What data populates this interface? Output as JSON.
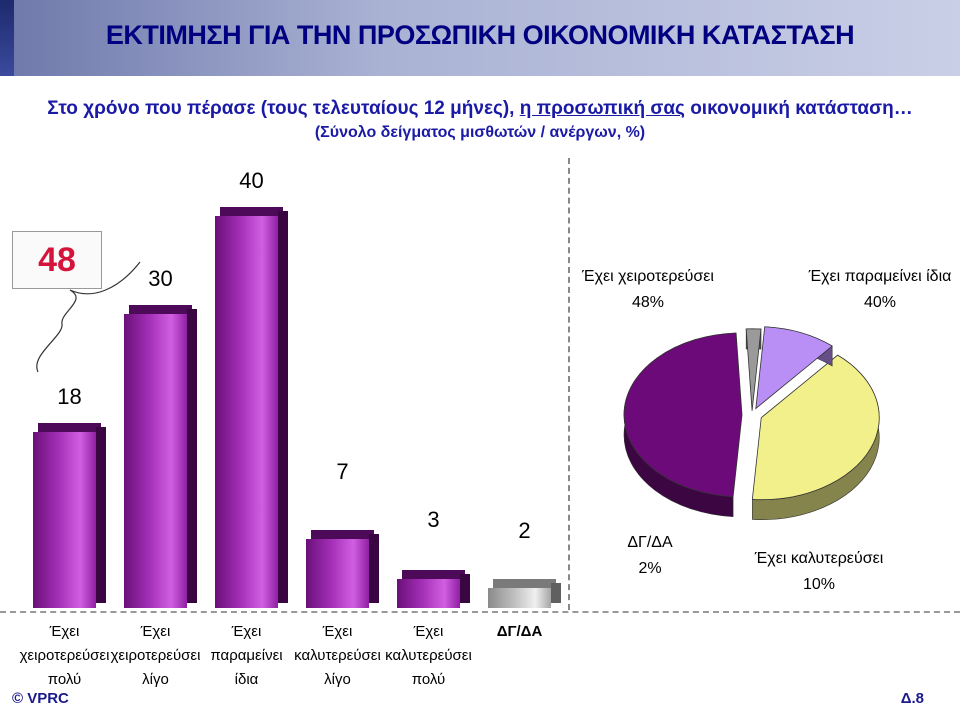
{
  "header": {
    "title": "ΕΚΤΙΜΗΣΗ ΓΙΑ ΤΗΝ ΠΡΟΣΩΠΙΚΗ ΟΙΚΟΝΟΜΙΚΗ ΚΑΤΑΣΤΑΣΗ",
    "question_part1": "Στο χρόνο που πέρασε (τους τελευταίους 12 μήνες), ",
    "question_underlined": "η προσωπική σας",
    "question_part2": " οικονομική κατάσταση…",
    "base_note": "(Σύνολο δείγματος μισθωτών / ανέργων, %)"
  },
  "chart_data": [
    {
      "type": "bar",
      "categories": [
        "Έχει χειροτερεύσει πολύ",
        "Έχει χειροτερεύσει λίγο",
        "Έχει παραμείνει ίδια",
        "Έχει καλυτερεύσει λίγο",
        "Έχει καλυτερεύσει πολύ",
        "ΔΓ/ΔΑ"
      ],
      "category_lines": [
        [
          "Έχει",
          "χειροτερεύσει",
          "πολύ"
        ],
        [
          "Έχει",
          "χειροτερεύσει",
          "λίγο"
        ],
        [
          "Έχει",
          "παραμείνει",
          "ίδια"
        ],
        [
          "Έχει",
          "καλυτερεύσει",
          "λίγο"
        ],
        [
          "Έχει",
          "καλυτερεύσει",
          "πολύ"
        ],
        [
          "ΔΓ/ΔΑ"
        ]
      ],
      "values": [
        18,
        30,
        40,
        7,
        3,
        2
      ],
      "value_labels": [
        "18",
        "30",
        "40",
        "7",
        "3",
        "2"
      ],
      "colors": [
        "#9b26ae",
        "#9b26ae",
        "#9b26ae",
        "#9b26ae",
        "#9b26ae",
        "#c0c0c0"
      ],
      "bracket_total": "48",
      "ylim": [
        0,
        40
      ]
    },
    {
      "type": "pie",
      "slices": [
        {
          "label": "Έχει χειροτερεύσει",
          "value": 48,
          "value_label": "48%",
          "color": "#6b0a78"
        },
        {
          "label": "Έχει παραμείνει ίδια",
          "value": 40,
          "value_label": "40%",
          "color": "#f2f08a"
        },
        {
          "label": "Έχει καλυτερεύσει",
          "value": 10,
          "value_label": "10%",
          "color": "#b98ef5"
        },
        {
          "label": "ΔΓ/ΔΑ",
          "value": 2,
          "value_label": "2%",
          "color": "#9a9a9a"
        }
      ]
    }
  ],
  "footer": {
    "copyright": "© VPRC",
    "page": "Δ.8"
  }
}
